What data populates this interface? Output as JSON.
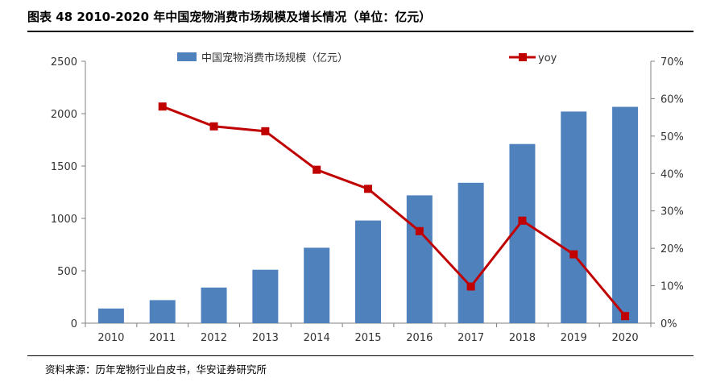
{
  "header": {
    "title": "图表 48 2010-2020 年中国宠物消费市场规模及增长情况（单位：亿元）"
  },
  "footer": {
    "source": "资料来源：历年宠物行业白皮书，华安证券研究所"
  },
  "colors": {
    "bar": "#4f81bd",
    "line": "#c00000",
    "axis": "#808080"
  },
  "chart_data": {
    "type": "bar+line",
    "title": "图表 48 2010-2020 年中国宠物消费市场规模及增长情况（单位：亿元）",
    "categories": [
      "2010",
      "2011",
      "2012",
      "2013",
      "2014",
      "2015",
      "2016",
      "2017",
      "2018",
      "2019",
      "2020"
    ],
    "series": [
      {
        "name": "中国宠物消费市场规模（亿元）",
        "type": "bar",
        "axis": "left",
        "values": [
          140,
          220,
          340,
          510,
          720,
          980,
          1220,
          1340,
          1710,
          2020,
          2065
        ]
      },
      {
        "name": "yoy",
        "type": "line",
        "axis": "right",
        "values": [
          null,
          57.9,
          52.6,
          51.3,
          41.0,
          35.9,
          24.6,
          9.8,
          27.4,
          18.4,
          1.9
        ]
      }
    ],
    "y_left": {
      "ylim": [
        0,
        2500
      ],
      "ticks": [
        "0",
        "500",
        "1000",
        "1500",
        "2000",
        "2500"
      ]
    },
    "y_right": {
      "ylim": [
        0,
        70
      ],
      "ticks": [
        "0%",
        "10%",
        "20%",
        "30%",
        "40%",
        "50%",
        "60%",
        "70%"
      ]
    },
    "legend": "top",
    "grid": false
  }
}
